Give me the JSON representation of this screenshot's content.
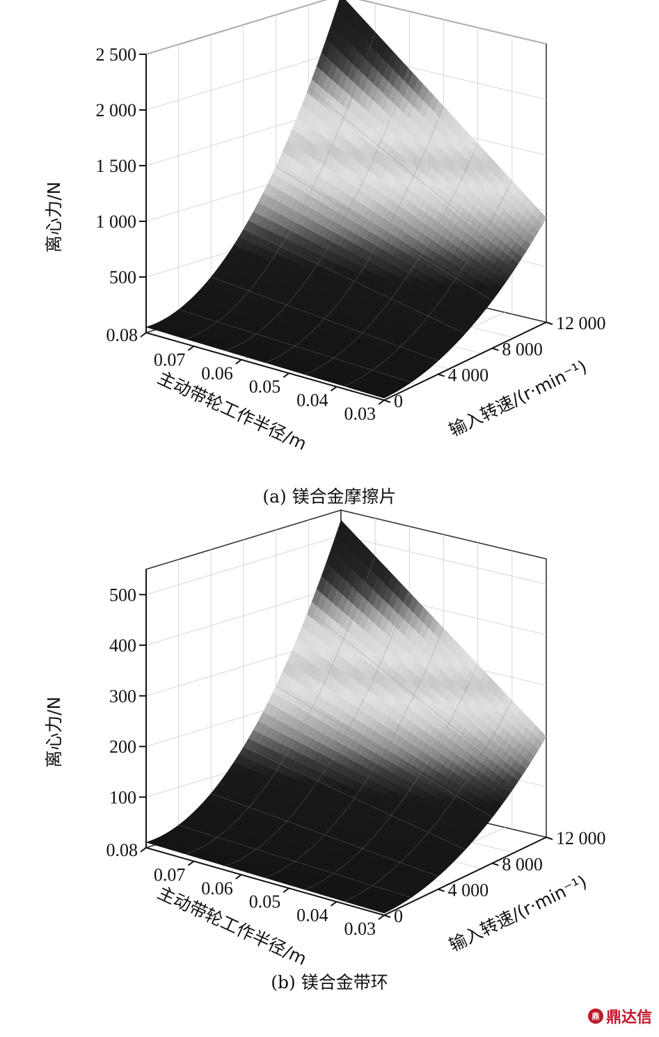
{
  "figures": [
    {
      "caption": "(a) 镁合金摩擦片",
      "z_label": "离心力/N",
      "x_label": "主动带轮工作半径/m",
      "y_label": "输入转速/(r·min⁻¹)"
    },
    {
      "caption": "(b) 镁合金带环",
      "z_label": "离心力/N",
      "x_label": "主动带轮工作半径/m",
      "y_label": "输入转速/(r·min⁻¹)"
    }
  ],
  "logo": {
    "text": "鼎达信",
    "color": "#c3172b",
    "icon": "dingdaxin-logo-icon"
  },
  "chart_data": [
    {
      "type": "surface",
      "x_ticks": [
        "0.08",
        "0.07",
        "0.06",
        "0.05",
        "0.04",
        "0.03"
      ],
      "y_ticks": [
        "0",
        "4 000",
        "8 000",
        "12 000"
      ],
      "z_ticks": [
        "500",
        "1 000",
        "1 500",
        "2 000",
        "2 500"
      ],
      "xlim": [
        0.03,
        0.08
      ],
      "ylim": [
        0,
        12000
      ],
      "zlim": [
        0,
        2500
      ],
      "z_max": 2500,
      "grid": true,
      "colormap": "grayscale banded"
    },
    {
      "type": "surface",
      "x_ticks": [
        "0.08",
        "0.07",
        "0.06",
        "0.05",
        "0.04",
        "0.03"
      ],
      "y_ticks": [
        "0",
        "4 000",
        "8 000",
        "12 000"
      ],
      "z_ticks": [
        "100",
        "200",
        "300",
        "400",
        "500"
      ],
      "xlim": [
        0.03,
        0.08
      ],
      "ylim": [
        0,
        12000
      ],
      "zlim": [
        0,
        550
      ],
      "z_max": 530,
      "grid": true,
      "colormap": "grayscale banded"
    }
  ]
}
